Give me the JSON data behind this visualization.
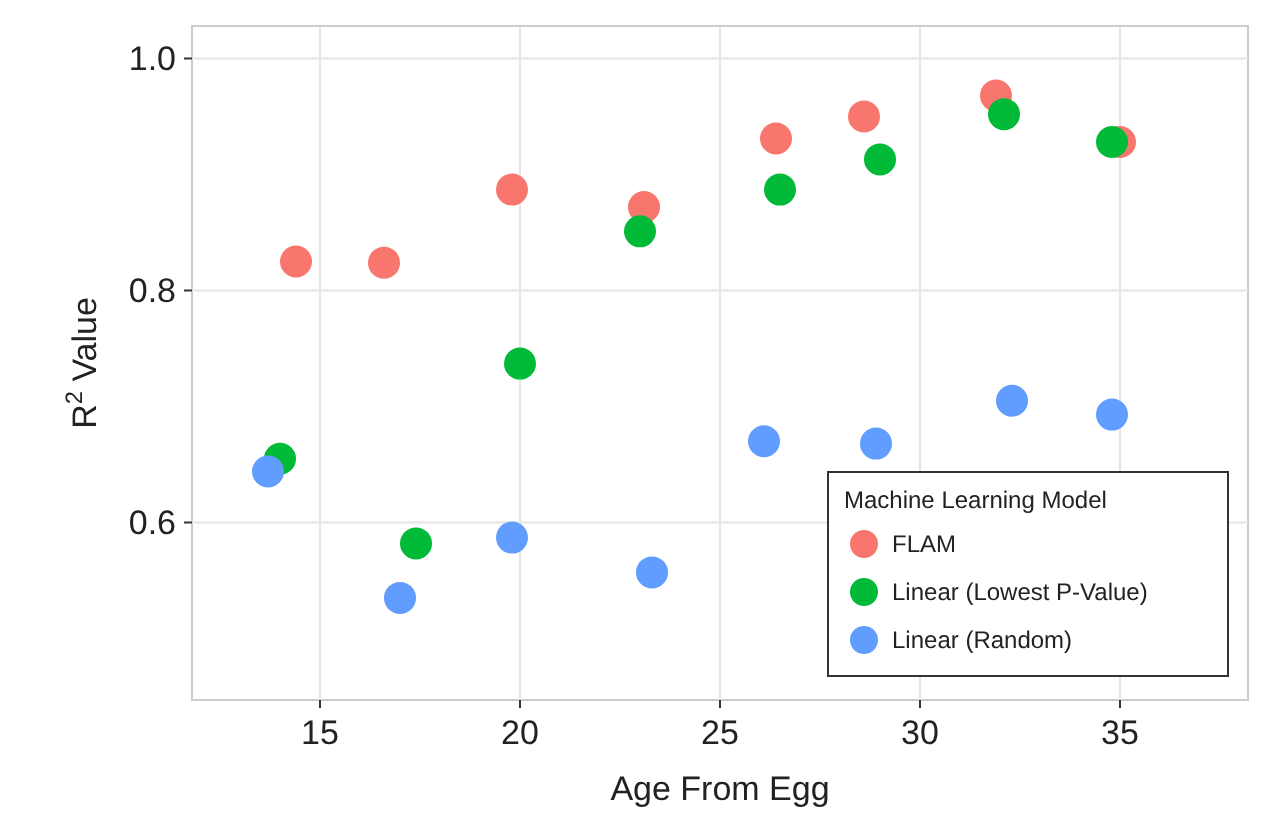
{
  "chart_data": {
    "type": "scatter",
    "xlabel": "Age From Egg",
    "ylabel": "R$^{2}$ Value",
    "legend_title": "Machine Learning Model",
    "legend": "bottom right",
    "grid": true,
    "marker": "circle",
    "xlim": [
      11.8,
      38.2
    ],
    "xticks": [
      15,
      20,
      25,
      30,
      35
    ],
    "ylim": [
      0.447,
      1.028
    ],
    "yticks": [
      {
        "value": 0.6,
        "label": "0.6"
      },
      {
        "value": 0.8,
        "label": "0.8"
      },
      {
        "value": 1.0,
        "label": "1.0"
      }
    ],
    "series": [
      {
        "name": "FLAM",
        "color": "#f8766d",
        "x": [
          14.4,
          16.6,
          19.8,
          23.1,
          26.4,
          28.6,
          31.9,
          35.0
        ],
        "values": [
          0.825,
          0.824,
          0.887,
          0.872,
          0.931,
          0.95,
          0.968,
          0.928
        ]
      },
      {
        "name": "Linear (Lowest P-Value)",
        "color": "#00ba38",
        "x": [
          14.0,
          17.4,
          20.0,
          23.0,
          26.5,
          29.0,
          32.1,
          34.8
        ],
        "values": [
          0.655,
          0.582,
          0.737,
          0.851,
          0.887,
          0.913,
          0.952,
          0.928
        ]
      },
      {
        "name": "Linear (Random)",
        "color": "#619cff",
        "x": [
          13.7,
          17.0,
          19.8,
          23.3,
          26.1,
          28.9,
          32.3,
          34.8
        ],
        "values": [
          0.644,
          0.535,
          0.587,
          0.557,
          0.67,
          0.668,
          0.705,
          0.693
        ]
      }
    ]
  }
}
